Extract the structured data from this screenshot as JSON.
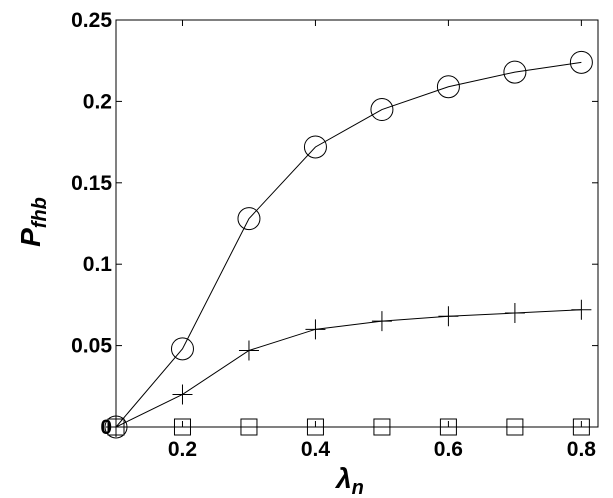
{
  "chart_data": {
    "type": "line",
    "xlabel": "λ",
    "xlabel_sub": "n",
    "ylabel": "P",
    "ylabel_sub": "fhb",
    "x": [
      0.1,
      0.2,
      0.3,
      0.4,
      0.5,
      0.6,
      0.7,
      0.8
    ],
    "series": [
      {
        "marker": "o",
        "color": "#000000",
        "values": [
          0,
          0.048,
          0.128,
          0.172,
          0.195,
          0.209,
          0.218,
          0.224
        ]
      },
      {
        "marker": "+",
        "color": "#000000",
        "values": [
          0,
          0.02,
          0.047,
          0.06,
          0.065,
          0.068,
          0.07,
          0.072
        ]
      },
      {
        "marker": "s",
        "color": "#000000",
        "values": [
          0,
          0,
          0,
          0,
          0,
          0,
          0,
          0
        ]
      }
    ],
    "xlim": [
      0.1,
      0.825
    ],
    "xticks": [
      0.2,
      0.4,
      0.6,
      0.8
    ],
    "ylim": [
      0,
      0.25
    ],
    "yticks": [
      0,
      0.05,
      0.1,
      0.15,
      0.2,
      0.25
    ],
    "grid": false
  }
}
